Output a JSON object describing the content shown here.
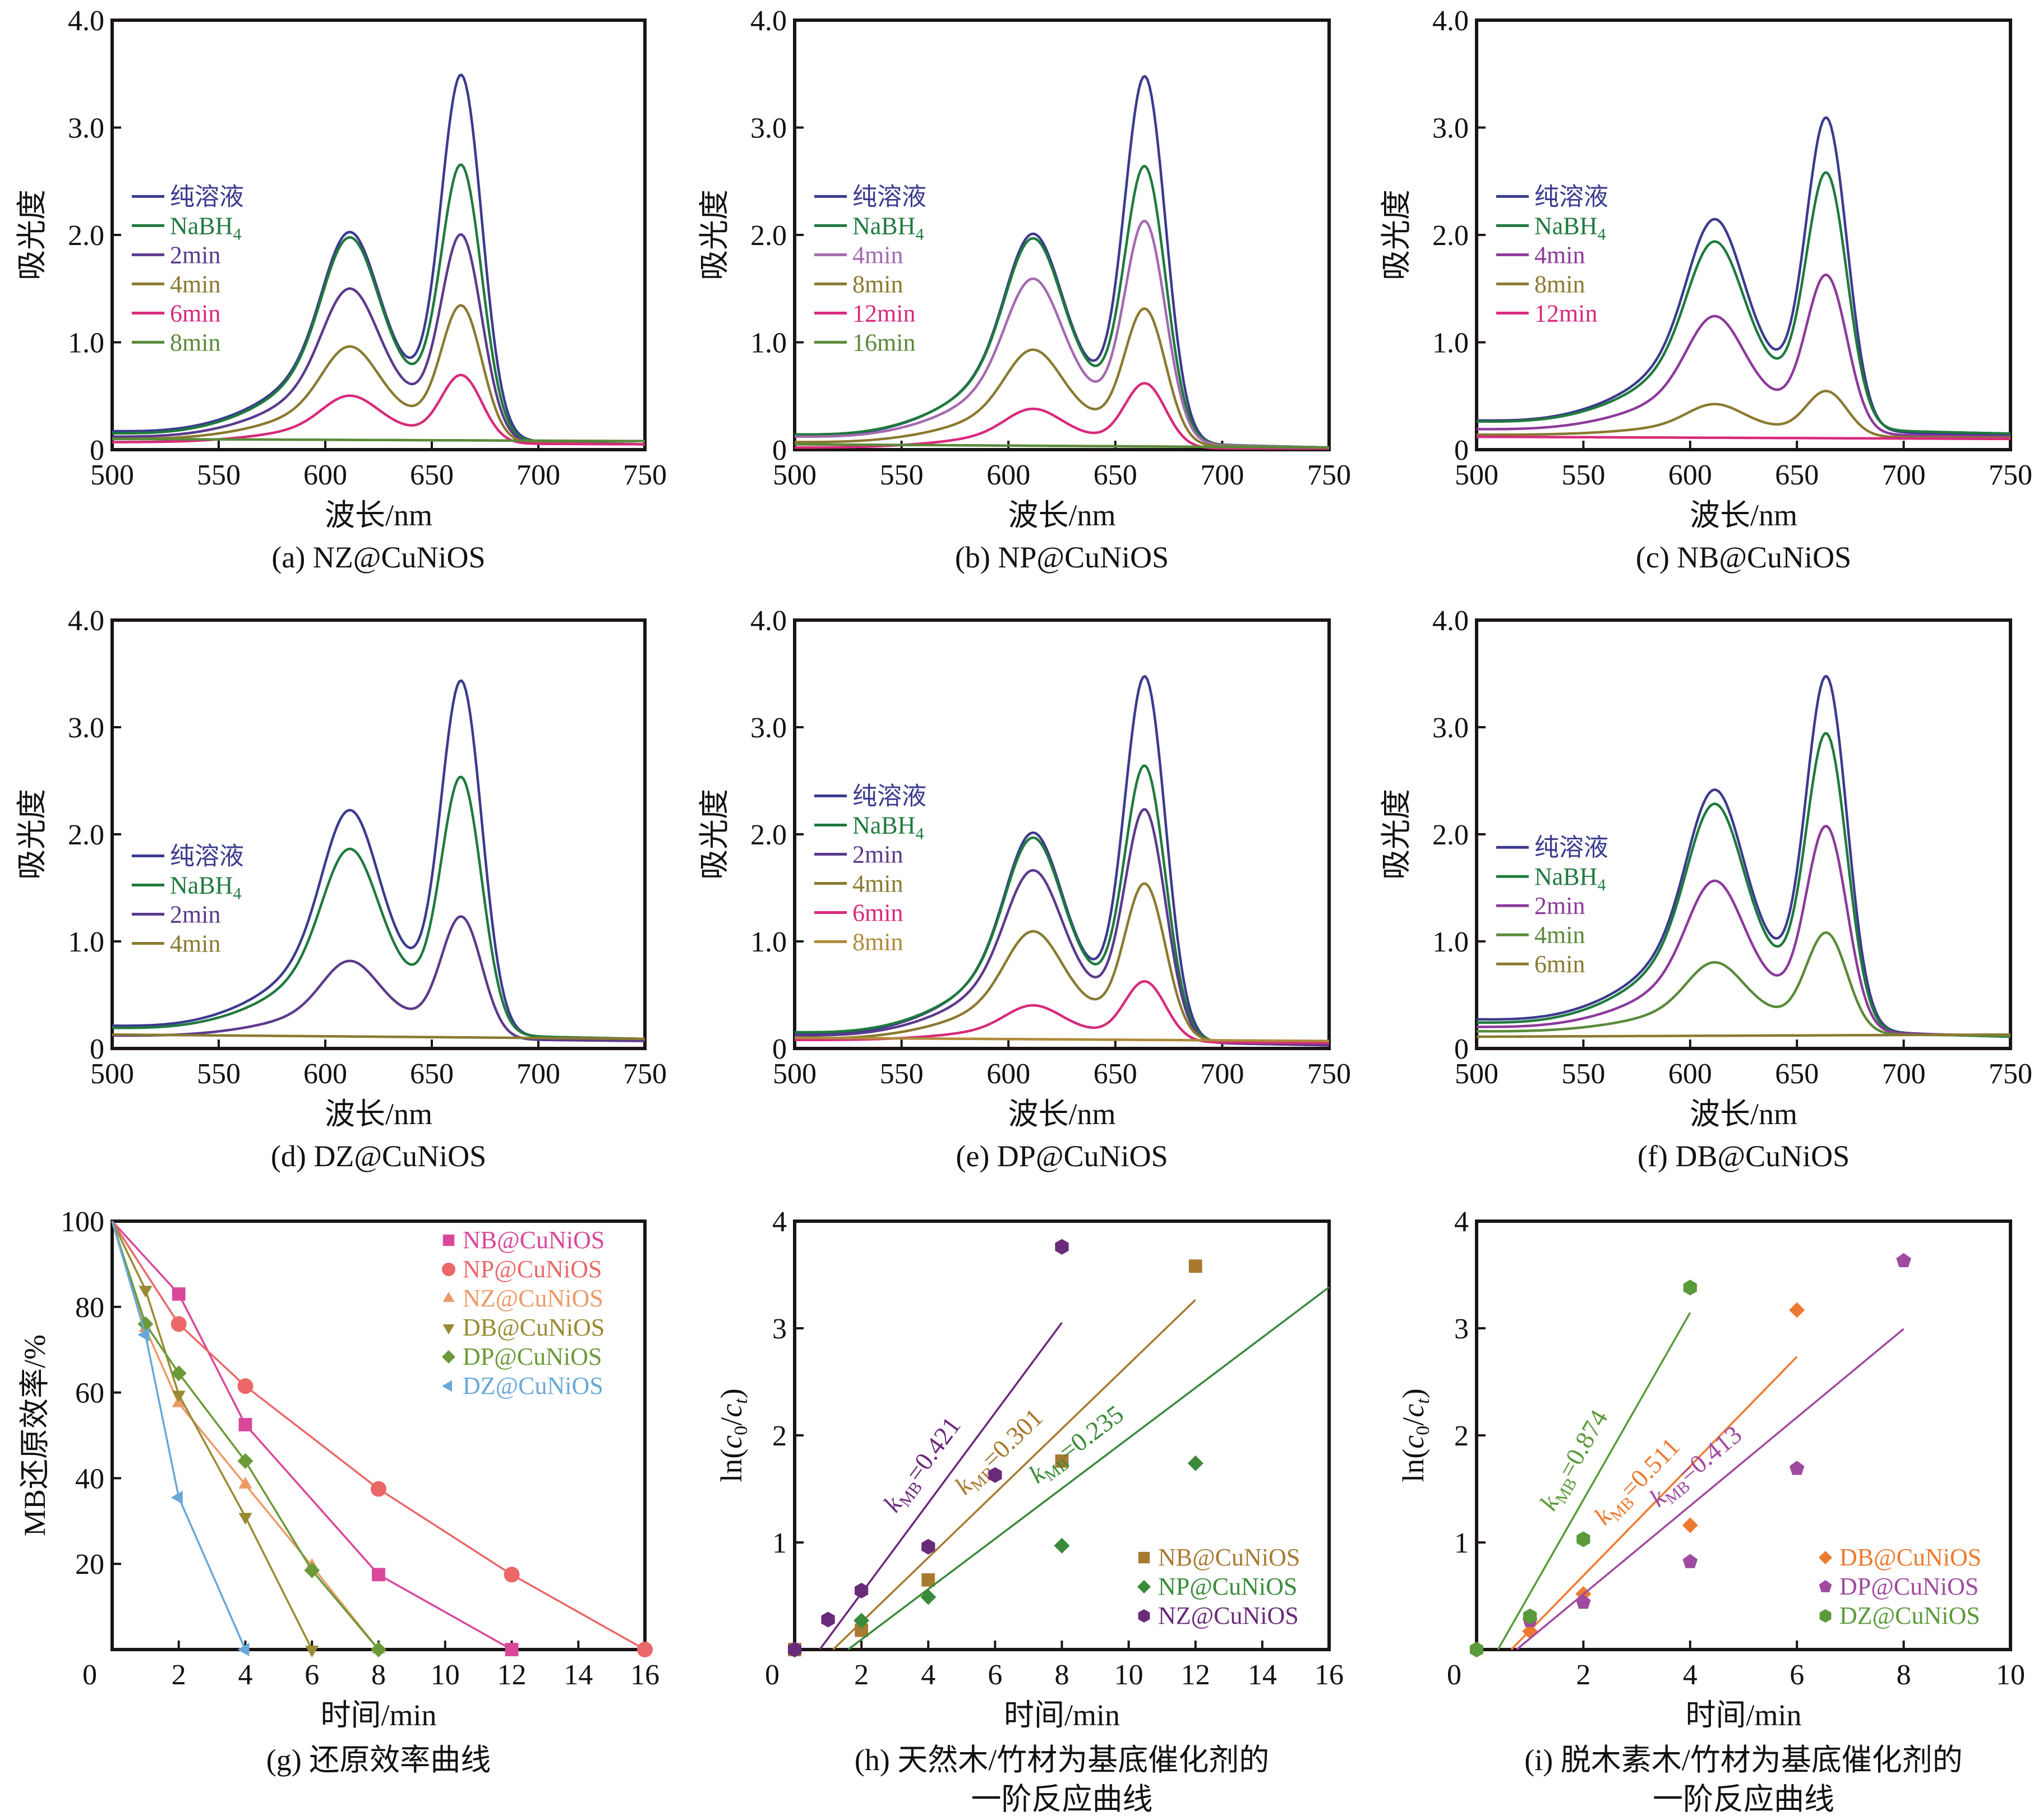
{
  "figure": {
    "colors": {
      "pure": "#3b3b8e",
      "nabh4": "#1f7a3d",
      "purple": "#5b3a8c",
      "lilac": "#a36aae",
      "violet": "#8c3a9a",
      "olive": "#8a7a30",
      "magenta": "#d82a7c",
      "leaf": "#5a8a3a",
      "tan": "#b08a3a",
      "axis": "#1a1414"
    }
  },
  "chart_data": [
    {
      "id": "a",
      "type": "line",
      "caption": "(a) NZ@CuNiOS",
      "xlabel": "波长/nm",
      "ylabel": "吸光度",
      "xlim": [
        500,
        750
      ],
      "ylim": [
        0,
        4.0
      ],
      "xticks": [
        "500",
        "550",
        "600",
        "650",
        "700",
        "750"
      ],
      "yticks": [
        "0",
        "1.0",
        "2.0",
        "3.0",
        "4.0"
      ],
      "legend_position": "middle-left",
      "series": [
        {
          "name": "纯溶液",
          "color": "pure",
          "baseline_500": 0.17,
          "baseline_750": 0.05,
          "peak_611": 2.16,
          "valley_630": 1.99,
          "peak_664": 3.72
        },
        {
          "name": "NaBH4",
          "color": "nabh4",
          "baseline_500": 0.15,
          "baseline_750": 0.05,
          "peak_611": 2.1,
          "valley_630": 1.81,
          "peak_664": 2.8
        },
        {
          "name": "2min",
          "color": "purple",
          "baseline_500": 0.12,
          "baseline_750": 0.05,
          "peak_611": 1.59,
          "valley_630": 1.39,
          "peak_664": 2.11
        },
        {
          "name": "4min",
          "color": "olive",
          "baseline_500": 0.1,
          "baseline_750": 0.05,
          "peak_611": 1.02,
          "valley_630": 0.93,
          "peak_664": 1.42
        },
        {
          "name": "6min",
          "color": "magenta",
          "baseline_500": 0.07,
          "baseline_750": 0.05,
          "peak_611": 0.53,
          "valley_630": 0.49,
          "peak_664": 0.73
        },
        {
          "name": "8min",
          "color": "leaf",
          "baseline_500": 0.1,
          "baseline_750": 0.08,
          "peak_611": 0.09,
          "valley_630": 0.09,
          "peak_664": 0.09
        }
      ]
    },
    {
      "id": "b",
      "type": "line",
      "caption": "(b) NP@CuNiOS",
      "xlabel": "波长/nm",
      "ylabel": "吸光度",
      "xlim": [
        500,
        750
      ],
      "ylim": [
        0,
        4.0
      ],
      "xticks": [
        "500",
        "550",
        "600",
        "650",
        "700",
        "750"
      ],
      "yticks": [
        "0",
        "1.0",
        "2.0",
        "3.0",
        "4.0"
      ],
      "legend_position": "middle-left",
      "series": [
        {
          "name": "纯溶液",
          "color": "pure",
          "baseline_500": 0.13,
          "baseline_750": 0.02,
          "peak_611": 2.14,
          "valley_630": 1.97,
          "peak_664": 3.7
        },
        {
          "name": "NaBH4",
          "color": "nabh4",
          "baseline_500": 0.14,
          "baseline_750": 0.02,
          "peak_611": 2.1,
          "valley_630": 1.81,
          "peak_664": 2.8
        },
        {
          "name": "4min",
          "color": "lilac",
          "baseline_500": 0.12,
          "baseline_750": 0.02,
          "peak_611": 1.7,
          "valley_630": 1.49,
          "peak_664": 2.26
        },
        {
          "name": "8min",
          "color": "olive",
          "baseline_500": 0.07,
          "baseline_750": 0.02,
          "peak_611": 0.99,
          "valley_630": 0.89,
          "peak_664": 1.39
        },
        {
          "name": "12min",
          "color": "magenta",
          "baseline_500": 0.02,
          "baseline_750": 0.01,
          "peak_611": 0.4,
          "valley_630": 0.39,
          "peak_664": 0.65
        },
        {
          "name": "16min",
          "color": "leaf",
          "baseline_500": 0.05,
          "baseline_750": 0.02,
          "peak_611": 0.04,
          "valley_630": 0.04,
          "peak_664": 0.03
        }
      ]
    },
    {
      "id": "c",
      "type": "line",
      "caption": "(c) NB@CuNiOS",
      "xlabel": "波长/nm",
      "ylabel": "吸光度",
      "xlim": [
        500,
        750
      ],
      "ylim": [
        0,
        4.0
      ],
      "xticks": [
        "500",
        "550",
        "600",
        "650",
        "700",
        "750"
      ],
      "yticks": [
        "0",
        "1.0",
        "2.0",
        "3.0",
        "4.0"
      ],
      "legend_position": "middle-left",
      "series": [
        {
          "name": "纯溶液",
          "color": "pure",
          "baseline_500": 0.27,
          "baseline_750": 0.13,
          "peak_611": 2.29,
          "valley_630": 2.09,
          "peak_664": 3.29
        },
        {
          "name": "NaBH4",
          "color": "nabh4",
          "baseline_500": 0.26,
          "baseline_750": 0.15,
          "peak_611": 2.06,
          "valley_630": 1.85,
          "peak_664": 2.73
        },
        {
          "name": "4min",
          "color": "violet",
          "baseline_500": 0.19,
          "baseline_750": 0.12,
          "peak_611": 1.32,
          "valley_630": 1.16,
          "peak_664": 1.72
        },
        {
          "name": "8min",
          "color": "olive",
          "baseline_500": 0.14,
          "baseline_750": 0.11,
          "peak_611": 0.45,
          "valley_630": 0.41,
          "peak_664": 0.58
        },
        {
          "name": "12min",
          "color": "magenta",
          "baseline_500": 0.12,
          "baseline_750": 0.1,
          "peak_611": 0.11,
          "valley_630": 0.11,
          "peak_664": 0.11
        }
      ]
    },
    {
      "id": "d",
      "type": "line",
      "caption": "(d) DZ@CuNiOS",
      "xlabel": "波长/nm",
      "ylabel": "吸光度",
      "xlim": [
        500,
        750
      ],
      "ylim": [
        0,
        4.0
      ],
      "xticks": [
        "500",
        "550",
        "600",
        "650",
        "700",
        "750"
      ],
      "yticks": [
        "0",
        "1.0",
        "2.0",
        "3.0",
        "4.0"
      ],
      "legend_position": "middle-left",
      "series": [
        {
          "name": "纯溶液",
          "color": "pure",
          "baseline_500": 0.21,
          "baseline_750": 0.08,
          "peak_611": 2.37,
          "valley_630": 2.21,
          "peak_664": 3.65
        },
        {
          "name": "NaBH4",
          "color": "nabh4",
          "baseline_500": 0.19,
          "baseline_750": 0.09,
          "peak_611": 1.98,
          "valley_630": 1.79,
          "peak_664": 2.68
        },
        {
          "name": "2min",
          "color": "purple",
          "baseline_500": 0.12,
          "baseline_750": 0.07,
          "peak_611": 0.87,
          "valley_630": 0.83,
          "peak_664": 1.31
        },
        {
          "name": "4min",
          "color": "olive",
          "baseline_500": 0.13,
          "baseline_750": 0.09,
          "peak_611": 0.12,
          "valley_630": 0.12,
          "peak_664": 0.12
        }
      ]
    },
    {
      "id": "e",
      "type": "line",
      "caption": "(e) DP@CuNiOS",
      "xlabel": "波长/nm",
      "ylabel": "吸光度",
      "xlim": [
        500,
        750
      ],
      "ylim": [
        0,
        4.0
      ],
      "xticks": [
        "500",
        "550",
        "600",
        "650",
        "700",
        "750"
      ],
      "yticks": [
        "0",
        "1.0",
        "2.0",
        "3.0",
        "4.0"
      ],
      "legend_position": "middle-left",
      "series": [
        {
          "name": "纯溶液",
          "color": "pure",
          "baseline_500": 0.13,
          "baseline_750": 0.03,
          "peak_611": 2.14,
          "valley_630": 1.97,
          "peak_664": 3.69
        },
        {
          "name": "NaBH4",
          "color": "nabh4",
          "baseline_500": 0.15,
          "baseline_750": 0.03,
          "peak_611": 2.1,
          "valley_630": 1.81,
          "peak_664": 2.8
        },
        {
          "name": "2min",
          "color": "purple",
          "baseline_500": 0.12,
          "baseline_750": 0.03,
          "peak_611": 1.77,
          "valley_630": 1.55,
          "peak_664": 2.36
        },
        {
          "name": "4min",
          "color": "olive",
          "baseline_500": 0.09,
          "baseline_750": 0.06,
          "peak_611": 1.15,
          "valley_630": 1.03,
          "peak_664": 1.61
        },
        {
          "name": "6min",
          "color": "magenta",
          "baseline_500": 0.08,
          "baseline_750": 0.05,
          "peak_611": 0.43,
          "valley_630": 0.42,
          "peak_664": 0.67
        },
        {
          "name": "8min",
          "color": "tan",
          "baseline_500": 0.1,
          "baseline_750": 0.07,
          "peak_611": 0.09,
          "valley_630": 0.09,
          "peak_664": 0.08
        }
      ]
    },
    {
      "id": "f",
      "type": "line",
      "caption": "(f) DB@CuNiOS",
      "xlabel": "波长/nm",
      "ylabel": "吸光度",
      "xlim": [
        500,
        750
      ],
      "ylim": [
        0,
        4.0
      ],
      "xticks": [
        "500",
        "550",
        "600",
        "650",
        "700",
        "750"
      ],
      "yticks": [
        "0",
        "1.0",
        "2.0",
        "3.0",
        "4.0"
      ],
      "legend_position": "middle-left",
      "series": [
        {
          "name": "纯溶液",
          "color": "pure",
          "baseline_500": 0.27,
          "baseline_750": 0.11,
          "peak_611": 2.58,
          "valley_630": 2.37,
          "peak_664": 3.7
        },
        {
          "name": "NaBH4",
          "color": "nabh4",
          "baseline_500": 0.24,
          "baseline_750": 0.11,
          "peak_611": 2.43,
          "valley_630": 2.14,
          "peak_664": 3.11
        },
        {
          "name": "2min",
          "color": "violet",
          "baseline_500": 0.2,
          "baseline_750": 0.12,
          "peak_611": 1.66,
          "valley_630": 1.47,
          "peak_664": 2.19
        },
        {
          "name": "4min",
          "color": "leaf",
          "baseline_500": 0.16,
          "baseline_750": 0.12,
          "peak_611": 0.85,
          "valley_630": 0.77,
          "peak_664": 1.14
        },
        {
          "name": "6min",
          "color": "olive",
          "baseline_500": 0.11,
          "baseline_750": 0.13,
          "peak_611": 0.1,
          "valley_630": 0.1,
          "peak_664": 0.11
        }
      ]
    },
    {
      "id": "g",
      "type": "line",
      "caption": "(g) 还原效率曲线",
      "xlabel": "时间/min",
      "ylabel": "MB还原效率/%",
      "xlim": [
        0,
        16
      ],
      "ylim": [
        0,
        100
      ],
      "xticks": [
        "0",
        "2",
        "4",
        "6",
        "8",
        "10",
        "12",
        "14",
        "16"
      ],
      "yticks": [
        "20",
        "40",
        "60",
        "80",
        "100"
      ],
      "legend_position": "top-right",
      "series": [
        {
          "name": "NB@CuNiOS",
          "color": "#d9479a",
          "marker": "square",
          "x": [
            0,
            2,
            4,
            8,
            12
          ],
          "y": [
            100,
            83,
            52.5,
            17.5,
            0
          ]
        },
        {
          "name": "NP@CuNiOS",
          "color": "#ea6868",
          "marker": "circle",
          "x": [
            0,
            2,
            4,
            8,
            12,
            16
          ],
          "y": [
            100,
            76,
            61.5,
            37.5,
            17.5,
            0
          ]
        },
        {
          "name": "NZ@CuNiOS",
          "color": "#ec9a68",
          "marker": "triangle-up",
          "x": [
            0,
            1,
            2,
            4,
            6,
            8
          ],
          "y": [
            100,
            75,
            57.5,
            38.5,
            19.5,
            0
          ]
        },
        {
          "name": "DB@CuNiOS",
          "color": "#998a32",
          "marker": "triangle-down",
          "x": [
            0,
            1,
            2,
            4,
            6
          ],
          "y": [
            100,
            84,
            59.5,
            31,
            0
          ]
        },
        {
          "name": "DP@CuNiOS",
          "color": "#6a9a38",
          "marker": "diamond",
          "x": [
            0,
            1,
            2,
            4,
            6,
            8
          ],
          "y": [
            100,
            76,
            64.5,
            44,
            18.5,
            0
          ]
        },
        {
          "name": "DZ@CuNiOS",
          "color": "#68a8d8",
          "marker": "triangle-left",
          "x": [
            0,
            1,
            2,
            4
          ],
          "y": [
            100,
            73.5,
            35.5,
            0
          ]
        }
      ]
    },
    {
      "id": "h",
      "type": "scatter",
      "caption_line1": "(h) 天然木/竹材为基底催化剂的",
      "caption_line2": "一阶反应曲线",
      "xlabel": "时间/min",
      "ylabel": "ln(c0/ct)",
      "xlim": [
        0,
        16
      ],
      "ylim": [
        0,
        4
      ],
      "xticks": [
        "0",
        "2",
        "4",
        "6",
        "8",
        "10",
        "12",
        "14",
        "16"
      ],
      "yticks": [
        "1",
        "2",
        "3",
        "4"
      ],
      "legend_position": "bottom-right",
      "series": [
        {
          "name": "NB@CuNiOS",
          "color": "#a87a30",
          "marker": "square",
          "x": [
            0,
            2,
            4,
            8,
            12
          ],
          "y": [
            0,
            0.18,
            0.65,
            1.76,
            3.58
          ],
          "fit": {
            "k": 0.301,
            "label": "=0.301",
            "x0": 1.15,
            "x1": 12
          }
        },
        {
          "name": "NP@CuNiOS",
          "color": "#3a8a3a",
          "marker": "diamond",
          "x": [
            2,
            4,
            8,
            12
          ],
          "y": [
            0.27,
            0.49,
            0.97,
            1.74
          ],
          "fit": {
            "k": 0.235,
            "label": "=0.235",
            "x0": 1.6,
            "x1": 16
          }
        },
        {
          "name": "NZ@CuNiOS",
          "color": "#6a2a7a",
          "marker": "hexagon",
          "x": [
            0,
            1,
            2,
            4,
            6,
            8
          ],
          "y": [
            0,
            0.28,
            0.55,
            0.96,
            1.63,
            3.76
          ],
          "fit": {
            "k": 0.421,
            "label": "=0.421",
            "x0": 0.75,
            "x1": 8
          }
        }
      ]
    },
    {
      "id": "i",
      "type": "scatter",
      "caption_line1": "(i) 脱木素木/竹材为基底催化剂的",
      "caption_line2": "一阶反应曲线",
      "xlabel": "时间/min",
      "ylabel": "ln(c0/ct)",
      "xlim": [
        0,
        10
      ],
      "ylim": [
        0,
        4
      ],
      "xticks": [
        "0",
        "2",
        "4",
        "6",
        "8",
        "10"
      ],
      "yticks": [
        "1",
        "2",
        "3",
        "4"
      ],
      "legend_position": "bottom-right",
      "series": [
        {
          "name": "DB@CuNiOS",
          "color": "#ee7a30",
          "marker": "diamond",
          "x": [
            1,
            2,
            4,
            6
          ],
          "y": [
            0.17,
            0.52,
            1.16,
            3.17
          ],
          "fit": {
            "k": 0.511,
            "label": "=0.511",
            "x0": 0.65,
            "x1": 6
          }
        },
        {
          "name": "DP@CuNiOS",
          "color": "#a04aa0",
          "marker": "pentagon",
          "x": [
            1,
            2,
            4,
            6,
            8
          ],
          "y": [
            0.27,
            0.44,
            0.82,
            1.69,
            3.63
          ],
          "fit": {
            "k": 0.413,
            "label": "=0.413",
            "x0": 0.75,
            "x1": 8
          }
        },
        {
          "name": "DZ@CuNiOS",
          "color": "#5a9a3a",
          "marker": "hexagon",
          "x": [
            0,
            1,
            2,
            4
          ],
          "y": [
            0,
            0.31,
            1.03,
            3.38
          ],
          "fit": {
            "k": 0.874,
            "label": "=0.874",
            "x0": 0.4,
            "x1": 4
          }
        }
      ]
    }
  ],
  "k_symbol": "k",
  "k_subscript": "MB",
  "nabh4_sub": "4"
}
